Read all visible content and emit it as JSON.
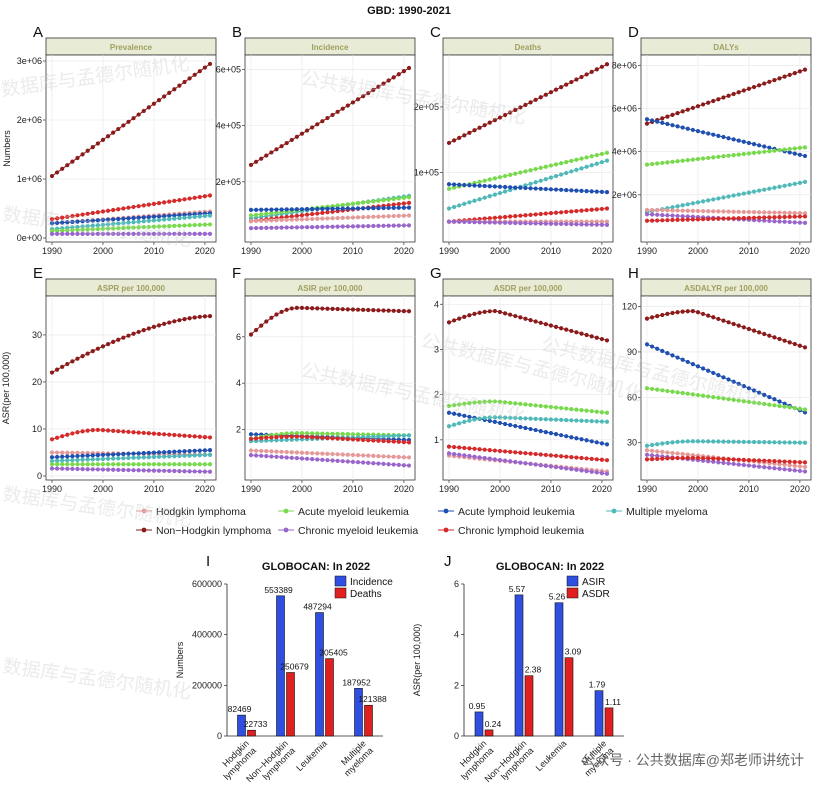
{
  "figure_title": "GBD: 1990-2021",
  "colors": {
    "hodgkin": "#e59a9a",
    "nhl": "#8b1a1a",
    "aml": "#78d94c",
    "cml": "#9966cc",
    "all": "#1f4fb0",
    "cll": "#d42a2a",
    "mm": "#4fb8b8",
    "strip_bg": "#e8ebd6",
    "strip_text": "#a0a060",
    "bar_incidence": "#2f4fe0",
    "bar_deaths": "#e02020"
  },
  "legend": {
    "row1": [
      "Hodgkin lymphoma",
      "Acute myeloid leukemia",
      "Acute lymphoid leukemia",
      "Multiple myeloma"
    ],
    "row2": [
      "Non−Hodgkin lymphoma",
      "Chronic myeloid leukemia",
      "Chronic lymphoid leukemia"
    ]
  },
  "watermarks": [
    "数据库与孟德尔随机化",
    "公共数据库与孟德尔随机化",
    "数据库与孟德尔随机化",
    "公共数据库与孟德尔随机化",
    "公共数据库与孟德尔随机化",
    "数据库与孟德尔随机化",
    "公共数据库与孟德尔随机化",
    "数据库与孟德尔随机化"
  ],
  "footer_text": "公众号 · 公共数据库@郑老师讲统计",
  "chart_data": [
    {
      "type": "line",
      "panel": "A",
      "title": "Prevalence",
      "ylabel": "Numbers",
      "xticks": [
        "1990",
        "2000",
        "2010",
        "2020"
      ],
      "xlim": [
        1990,
        2021
      ],
      "ylim": [
        0,
        3000000
      ],
      "yticks": [
        0,
        1000000,
        2000000,
        3000000
      ],
      "ytick_labels": [
        "0e+00",
        "1e+06",
        "2e+06",
        "3e+06"
      ],
      "series": [
        {
          "name": "Non−Hodgkin lymphoma",
          "key": "nhl",
          "start": 1050000,
          "end": 2950000,
          "shape": "linear"
        },
        {
          "name": "Chronic lymphoid leukemia",
          "key": "cll",
          "start": 320000,
          "end": 720000,
          "shape": "linear"
        },
        {
          "name": "Hodgkin lymphoma",
          "key": "hodgkin",
          "start": 250000,
          "end": 450000,
          "shape": "linear"
        },
        {
          "name": "Acute lymphoid leukemia",
          "key": "all",
          "start": 250000,
          "end": 420000,
          "shape": "linear"
        },
        {
          "name": "Multiple myeloma",
          "key": "mm",
          "start": 150000,
          "end": 380000,
          "shape": "linear"
        },
        {
          "name": "Acute myeloid leukemia",
          "key": "aml",
          "start": 120000,
          "end": 230000,
          "shape": "linear"
        },
        {
          "name": "Chronic myeloid leukemia",
          "key": "cml",
          "start": 70000,
          "end": 70000,
          "shape": "linear"
        }
      ]
    },
    {
      "type": "line",
      "panel": "B",
      "title": "Incidence",
      "ylabel": "",
      "xticks": [
        "1990",
        "2000",
        "2010",
        "2020"
      ],
      "xlim": [
        1990,
        2021
      ],
      "ylim": [
        0,
        630000
      ],
      "yticks": [
        200000,
        400000,
        600000
      ],
      "ytick_labels": [
        "2e+05",
        "4e+05",
        "6e+05"
      ],
      "series": [
        {
          "name": "Non−Hodgkin lymphoma",
          "key": "nhl",
          "start": 260000,
          "end": 605000,
          "shape": "linear"
        },
        {
          "name": "Multiple myeloma",
          "key": "mm",
          "start": 70000,
          "end": 150000,
          "shape": "linear"
        },
        {
          "name": "Acute myeloid leukemia",
          "key": "aml",
          "start": 80000,
          "end": 145000,
          "shape": "linear"
        },
        {
          "name": "Chronic lymphoid leukemia",
          "key": "cll",
          "start": 60000,
          "end": 125000,
          "shape": "linear"
        },
        {
          "name": "Acute lymphoid leukemia",
          "key": "all",
          "start": 100000,
          "end": 108000,
          "shape": "linear"
        },
        {
          "name": "Hodgkin lymphoma",
          "key": "hodgkin",
          "start": 60000,
          "end": 80000,
          "shape": "linear"
        },
        {
          "name": "Chronic myeloid leukemia",
          "key": "cml",
          "start": 35000,
          "end": 45000,
          "shape": "linear"
        }
      ]
    },
    {
      "type": "line",
      "panel": "C",
      "title": "Deaths",
      "ylabel": "",
      "xticks": [
        "1990",
        "2000",
        "2010",
        "2020"
      ],
      "xlim": [
        1990,
        2021
      ],
      "ylim": [
        0,
        270000
      ],
      "yticks": [
        100000,
        200000
      ],
      "ytick_labels": [
        "1e+05",
        "2e+05"
      ],
      "series": [
        {
          "name": "Non−Hodgkin lymphoma",
          "key": "nhl",
          "start": 145000,
          "end": 265000,
          "shape": "linear"
        },
        {
          "name": "Acute myeloid leukemia",
          "key": "aml",
          "start": 75000,
          "end": 130000,
          "shape": "linear"
        },
        {
          "name": "Multiple myeloma",
          "key": "mm",
          "start": 45000,
          "end": 118000,
          "shape": "linear"
        },
        {
          "name": "Acute lymphoid leukemia",
          "key": "all",
          "start": 82000,
          "end": 70000,
          "shape": "linear"
        },
        {
          "name": "Chronic lymphoid leukemia",
          "key": "cll",
          "start": 25000,
          "end": 45000,
          "shape": "linear"
        },
        {
          "name": "Hodgkin lymphoma",
          "key": "hodgkin",
          "start": 25000,
          "end": 25000,
          "shape": "linear"
        },
        {
          "name": "Chronic myeloid leukemia",
          "key": "cml",
          "start": 25000,
          "end": 20000,
          "shape": "linear"
        }
      ]
    },
    {
      "type": "line",
      "panel": "D",
      "title": "DALYs",
      "ylabel": "",
      "xticks": [
        "1990",
        "2000",
        "2010",
        "2020"
      ],
      "xlim": [
        1990,
        2021
      ],
      "ylim": [
        0,
        8200000
      ],
      "yticks": [
        2000000,
        4000000,
        6000000,
        8000000
      ],
      "ytick_labels": [
        "2e+06",
        "4e+06",
        "6e+06",
        "8e+06"
      ],
      "series": [
        {
          "name": "Non−Hodgkin lymphoma",
          "key": "nhl",
          "start": 5300000,
          "end": 7800000,
          "shape": "linear"
        },
        {
          "name": "Acute lymphoid leukemia",
          "key": "all",
          "start": 5500000,
          "end": 3800000,
          "shape": "linear"
        },
        {
          "name": "Acute myeloid leukemia",
          "key": "aml",
          "start": 3400000,
          "end": 4200000,
          "shape": "linear"
        },
        {
          "name": "Multiple myeloma",
          "key": "mm",
          "start": 1200000,
          "end": 2600000,
          "shape": "linear"
        },
        {
          "name": "Hodgkin lymphoma",
          "key": "hodgkin",
          "start": 1300000,
          "end": 1150000,
          "shape": "linear"
        },
        {
          "name": "Chronic myeloid leukemia",
          "key": "cml",
          "start": 1100000,
          "end": 700000,
          "shape": "linear"
        },
        {
          "name": "Chronic lymphoid leukemia",
          "key": "cll",
          "start": 800000,
          "end": 1000000,
          "shape": "linear"
        }
      ]
    },
    {
      "type": "line",
      "panel": "E",
      "title": "ASPR per 100,000",
      "ylabel": "ASR(per 100,000)",
      "xticks": [
        "1990",
        "2000",
        "2010",
        "2020"
      ],
      "xlim": [
        1990,
        2021
      ],
      "ylim": [
        0,
        37
      ],
      "yticks": [
        0,
        10,
        20,
        30
      ],
      "ytick_labels": [
        "0",
        "10",
        "20",
        "30"
      ],
      "series": [
        {
          "name": "Non−Hodgkin lymphoma",
          "key": "nhl",
          "start": 22,
          "end": 34,
          "shape": "rise_plateau"
        },
        {
          "name": "Chronic lymphoid leukemia",
          "key": "cll",
          "start": 7.8,
          "end": 8.2,
          "shape": "hump",
          "peak": 9.8
        },
        {
          "name": "Hodgkin lymphoma",
          "key": "hodgkin",
          "start": 5,
          "end": 4.5,
          "shape": "linear"
        },
        {
          "name": "Acute lymphoid leukemia",
          "key": "all",
          "start": 4,
          "end": 5.5,
          "shape": "linear"
        },
        {
          "name": "Multiple myeloma",
          "key": "mm",
          "start": 3.2,
          "end": 4.5,
          "shape": "linear"
        },
        {
          "name": "Acute myeloid leukemia",
          "key": "aml",
          "start": 2.5,
          "end": 2.5,
          "shape": "linear"
        },
        {
          "name": "Chronic myeloid leukemia",
          "key": "cml",
          "start": 1.6,
          "end": 0.9,
          "shape": "linear"
        }
      ]
    },
    {
      "type": "line",
      "panel": "F",
      "title": "ASIR per 100,000",
      "ylabel": "",
      "xticks": [
        "1990",
        "2000",
        "2010",
        "2020"
      ],
      "xlim": [
        1990,
        2021
      ],
      "ylim": [
        0,
        7.5
      ],
      "yticks": [
        2,
        4,
        6
      ],
      "ytick_labels": [
        "2",
        "4",
        "6"
      ],
      "series": [
        {
          "name": "Non−Hodgkin lymphoma",
          "key": "nhl",
          "start": 6.1,
          "end": 7.1,
          "shape": "hump",
          "peak": 7.25
        },
        {
          "name": "Acute lymphoid leukemia",
          "key": "all",
          "start": 1.8,
          "end": 1.55,
          "shape": "linear"
        },
        {
          "name": "Acute myeloid leukemia",
          "key": "aml",
          "start": 1.6,
          "end": 1.75,
          "shape": "hump",
          "peak": 1.85
        },
        {
          "name": "Multiple myeloma",
          "key": "mm",
          "start": 1.5,
          "end": 1.75,
          "shape": "linear"
        },
        {
          "name": "Chronic lymphoid leukemia",
          "key": "cll",
          "start": 1.6,
          "end": 1.45,
          "shape": "hump",
          "peak": 1.7
        },
        {
          "name": "Hodgkin lymphoma",
          "key": "hodgkin",
          "start": 1.1,
          "end": 0.8,
          "shape": "linear"
        },
        {
          "name": "Chronic myeloid leukemia",
          "key": "cml",
          "start": 0.9,
          "end": 0.45,
          "shape": "linear"
        }
      ]
    },
    {
      "type": "line",
      "panel": "G",
      "title": "ASDR per 100,000",
      "ylabel": "",
      "xticks": [
        "1990",
        "2000",
        "2010",
        "2020"
      ],
      "xlim": [
        1990,
        2021
      ],
      "ylim": [
        0.2,
        4.05
      ],
      "yticks": [
        1,
        2,
        3,
        4
      ],
      "ytick_labels": [
        "1",
        "2",
        "3",
        "4"
      ],
      "series": [
        {
          "name": "Non−Hodgkin lymphoma",
          "key": "nhl",
          "start": 3.6,
          "end": 3.2,
          "shape": "hump",
          "peak": 3.85
        },
        {
          "name": "Acute myeloid leukemia",
          "key": "aml",
          "start": 1.75,
          "end": 1.6,
          "shape": "hump",
          "peak": 1.85
        },
        {
          "name": "Acute lymphoid leukemia",
          "key": "all",
          "start": 1.6,
          "end": 0.9,
          "shape": "linear"
        },
        {
          "name": "Multiple myeloma",
          "key": "mm",
          "start": 1.3,
          "end": 1.4,
          "shape": "hump",
          "peak": 1.5
        },
        {
          "name": "Chronic lymphoid leukemia",
          "key": "cll",
          "start": 0.85,
          "end": 0.55,
          "shape": "linear"
        },
        {
          "name": "Hodgkin lymphoma",
          "key": "hodgkin",
          "start": 0.65,
          "end": 0.3,
          "shape": "linear"
        },
        {
          "name": "Chronic myeloid leukemia",
          "key": "cml",
          "start": 0.7,
          "end": 0.25,
          "shape": "linear"
        }
      ]
    },
    {
      "type": "line",
      "panel": "H",
      "title": "ASDALYR per 100,000",
      "ylabel": "",
      "xticks": [
        "1990",
        "2000",
        "2010",
        "2020"
      ],
      "xlim": [
        1990,
        2021
      ],
      "ylim": [
        8,
        123
      ],
      "yticks": [
        30,
        60,
        90,
        120
      ],
      "ytick_labels": [
        "30",
        "60",
        "90",
        "120"
      ],
      "series": [
        {
          "name": "Non−Hodgkin lymphoma",
          "key": "nhl",
          "start": 112,
          "end": 93,
          "shape": "hump",
          "peak": 117
        },
        {
          "name": "Acute lymphoid leukemia",
          "key": "all",
          "start": 95,
          "end": 50,
          "shape": "linear"
        },
        {
          "name": "Acute myeloid leukemia",
          "key": "aml",
          "start": 66,
          "end": 52,
          "shape": "linear"
        },
        {
          "name": "Multiple myeloma",
          "key": "mm",
          "start": 28,
          "end": 30,
          "shape": "hump",
          "peak": 31
        },
        {
          "name": "Hodgkin lymphoma",
          "key": "hodgkin",
          "start": 25,
          "end": 14,
          "shape": "linear"
        },
        {
          "name": "Chronic myeloid leukemia",
          "key": "cml",
          "start": 22,
          "end": 11,
          "shape": "linear"
        },
        {
          "name": "Chronic lymphoid leukemia",
          "key": "cll",
          "start": 19,
          "end": 17,
          "shape": "hump",
          "peak": 20
        }
      ]
    },
    {
      "type": "bar",
      "panel": "I",
      "title": "GLOBOCAN: In 2022",
      "ylabel": "Numbers",
      "categories": [
        [
          "Hodgkin",
          "lymphoma"
        ],
        [
          "Non−Hodgkin",
          "lymphoma"
        ],
        [
          "Leukemia"
        ],
        [
          "Multiple",
          "myeloma"
        ]
      ],
      "ylim": [
        0,
        600000
      ],
      "yticks": [
        0,
        200000,
        400000,
        600000
      ],
      "ytick_labels": [
        "0",
        "200000",
        "400000",
        "600000"
      ],
      "series": [
        {
          "name": "Incidence",
          "key": "bar_incidence",
          "values": [
            82469,
            553389,
            487294,
            187952
          ],
          "labels": [
            "82469",
            "553389",
            "487294",
            "187952"
          ]
        },
        {
          "name": "Deaths",
          "key": "bar_deaths",
          "values": [
            22733,
            250679,
            305405,
            121388
          ],
          "labels": [
            "22733",
            "250679",
            "305405",
            "121388"
          ]
        }
      ]
    },
    {
      "type": "bar",
      "panel": "J",
      "title": "GLOBOCAN: In 2022",
      "ylabel": "ASR(per 100,000)",
      "categories": [
        [
          "Hodgkin",
          "lymphoma"
        ],
        [
          "Non−Hodgkin",
          "lymphoma"
        ],
        [
          "Leukemia"
        ],
        [
          "Multiple",
          "myeloma"
        ]
      ],
      "ylim": [
        0,
        6
      ],
      "yticks": [
        0,
        2,
        4,
        6
      ],
      "ytick_labels": [
        "0",
        "2",
        "4",
        "6"
      ],
      "series": [
        {
          "name": "ASIR",
          "key": "bar_incidence",
          "values": [
            0.95,
            5.57,
            5.26,
            1.79
          ],
          "labels": [
            "0.95",
            "5.57",
            "5.26",
            "1.79"
          ]
        },
        {
          "name": "ASDR",
          "key": "bar_deaths",
          "values": [
            0.24,
            2.38,
            3.09,
            1.11
          ],
          "labels": [
            "0.24",
            "2.38",
            "3.09",
            "1.11"
          ]
        }
      ]
    }
  ]
}
